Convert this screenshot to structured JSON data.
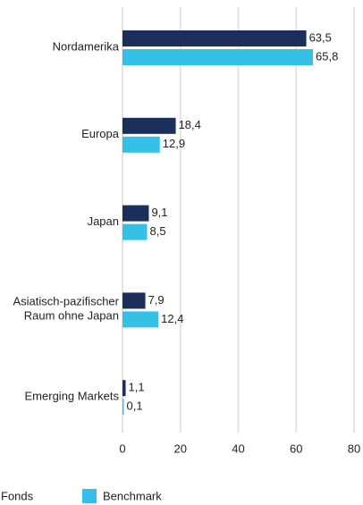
{
  "chart_data": {
    "type": "hbar",
    "categories": [
      "Nordamerika",
      "Europa",
      "Japan",
      "Asiatisch-pazifischer Raum ohne Japan",
      "Emerging Markets"
    ],
    "series": [
      {
        "name": "Fonds",
        "color": "#1c2f5a",
        "values": [
          63.5,
          18.4,
          9.1,
          7.9,
          1.1
        ],
        "value_labels": [
          "63,5",
          "18,4",
          "9,1",
          "7,9",
          "1,1"
        ]
      },
      {
        "name": "Benchmark",
        "color": "#35c0e8",
        "values": [
          65.8,
          12.9,
          8.5,
          12.4,
          0.1
        ],
        "value_labels": [
          "65,8",
          "12,9",
          "8,5",
          "12,4",
          "0,1"
        ]
      }
    ],
    "xlim": [
      0,
      80
    ],
    "xticks": [
      0,
      20,
      40,
      60,
      80
    ],
    "grid": true
  }
}
